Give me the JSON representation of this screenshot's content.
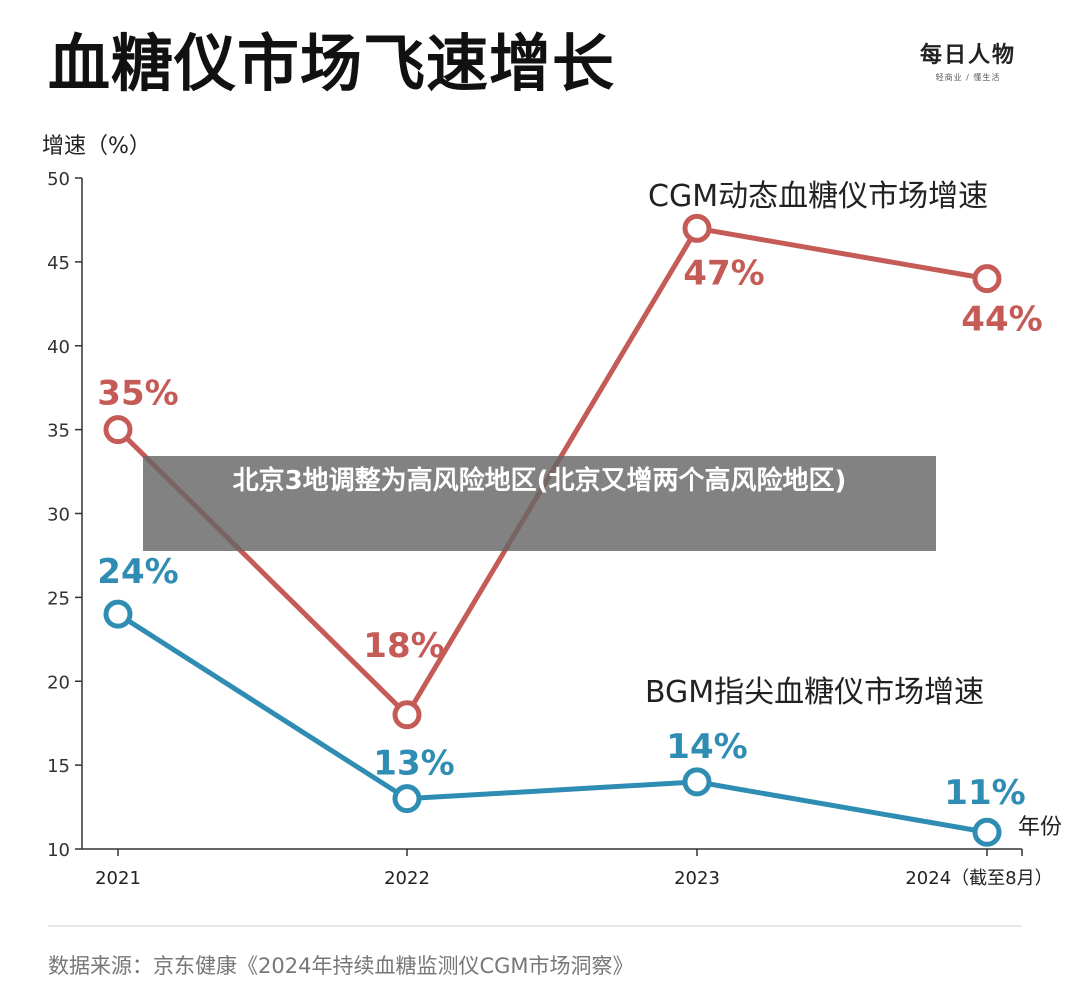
{
  "header": {
    "title": "血糖仪市场飞速增长",
    "brand_logo": "每日人物",
    "brand_tagline": "轻商业 / 懂生活"
  },
  "overlay": {
    "text": "北京3地调整为高风险地区(北京又增两个高风险地区)"
  },
  "footer": {
    "source": "数据来源：京东健康《2024年持续血糖监测仪CGM市场洞察》"
  },
  "chart_data": {
    "type": "line",
    "ylabel": "增速（%）",
    "xlabel": "年份",
    "categories": [
      "2021",
      "2022",
      "2023",
      "2024（截至8月）"
    ],
    "ylim": [
      10,
      50
    ],
    "yticks": [
      10,
      15,
      20,
      25,
      30,
      35,
      40,
      45,
      50
    ],
    "grid": false,
    "series": [
      {
        "name": "CGM动态血糖仪市场增速",
        "color": "#c55b57",
        "values": [
          35,
          18,
          47,
          44
        ],
        "labels": [
          "35%",
          "18%",
          "47%",
          "44%"
        ]
      },
      {
        "name": "BGM指尖血糖仪市场增速",
        "color": "#2f8db3",
        "values": [
          24,
          13,
          14,
          11
        ],
        "labels": [
          "24%",
          "13%",
          "14%",
          "11%"
        ]
      }
    ]
  }
}
